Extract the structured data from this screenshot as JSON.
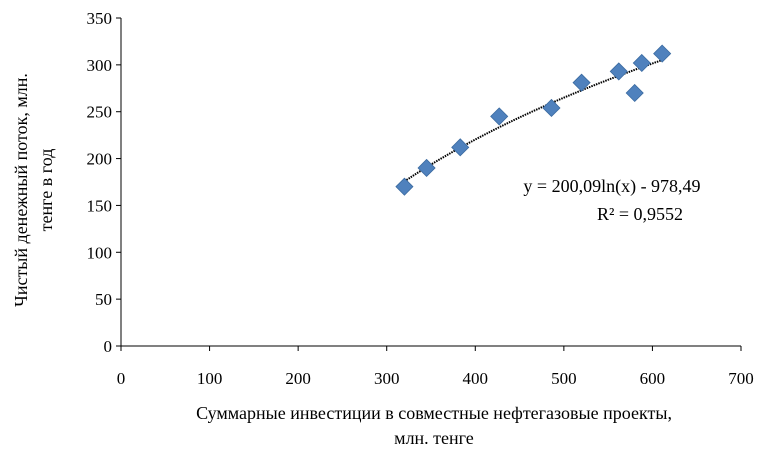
{
  "chart_data": {
    "type": "scatter",
    "xlabel_line1": "Суммарные инвестиции  в совместные нефтегазовые  проекты,",
    "xlabel_line2": "млн. тенге",
    "ylabel_line1": "Чистый  денежный  поток, млн.",
    "ylabel_line2": "тенге  в год",
    "xlim": [
      0,
      700
    ],
    "ylim": [
      0,
      350
    ],
    "x_ticks": [
      "0",
      "100",
      "200",
      "300",
      "400",
      "500",
      "600",
      "700"
    ],
    "y_ticks": [
      "0",
      "50",
      "100",
      "150",
      "200",
      "250",
      "300",
      "350"
    ],
    "grid": false,
    "marker_color": "#4F81BD",
    "trend_color": "#000000",
    "points": [
      {
        "x": 320,
        "y": 170
      },
      {
        "x": 345,
        "y": 190
      },
      {
        "x": 383,
        "y": 212
      },
      {
        "x": 427,
        "y": 245
      },
      {
        "x": 486,
        "y": 254
      },
      {
        "x": 520,
        "y": 281
      },
      {
        "x": 562,
        "y": 293
      },
      {
        "x": 580,
        "y": 270
      },
      {
        "x": 588,
        "y": 302
      },
      {
        "x": 611,
        "y": 312
      }
    ],
    "trendline": {
      "type": "logarithmic",
      "a": 200.09,
      "b": -978.49,
      "x_from": 320,
      "x_to": 611,
      "equation_text": "y = 200,09ln(x)   - 978,49",
      "r2_text": "R² = 0,9552"
    }
  }
}
